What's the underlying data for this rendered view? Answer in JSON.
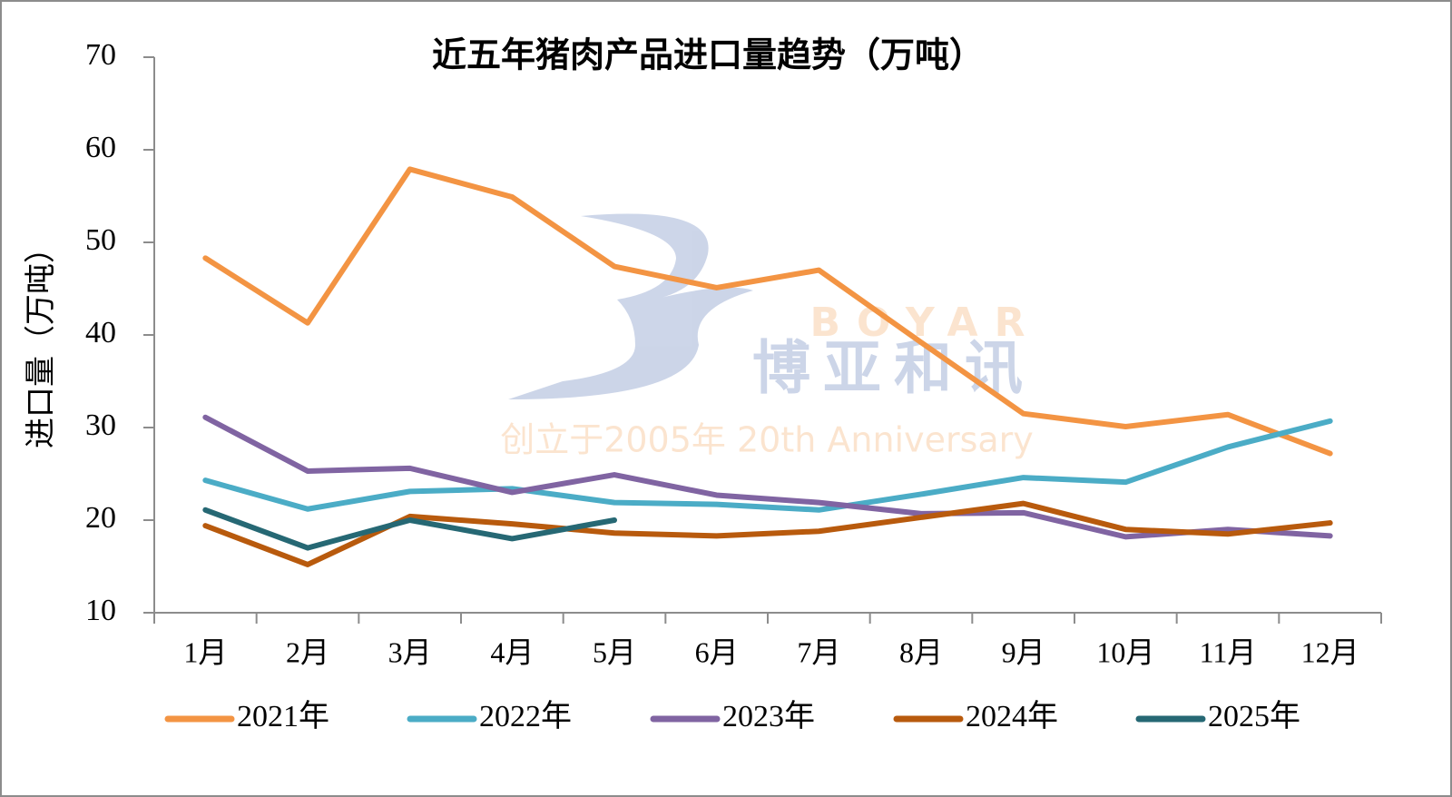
{
  "chart_data": {
    "type": "line",
    "title": "近五年猪肉产品进口量趋势（万吨）",
    "y_label": "进口量（万吨）",
    "watermark": {
      "brand": "BOYAR",
      "name": "博亚和讯",
      "slogan": "创立于2005年 20th Anniversary"
    },
    "categories": [
      "1月",
      "2月",
      "3月",
      "4月",
      "5月",
      "6月",
      "7月",
      "8月",
      "9月",
      "10月",
      "11月",
      "12月"
    ],
    "series": [
      {
        "name": "2021年",
        "color": "#f39443",
        "values": [
          48.3,
          41.3,
          57.9,
          54.9,
          47.4,
          45.1,
          47,
          39.2,
          31.5,
          30.1,
          31.4,
          27.2
        ]
      },
      {
        "name": "2022年",
        "color": "#4bacc6",
        "values": [
          24.3,
          21.2,
          23.1,
          23.4,
          21.9,
          21.7,
          21.1,
          22.8,
          24.6,
          24.1,
          27.9,
          30.7
        ]
      },
      {
        "name": "2023年",
        "color": "#8064a2",
        "values": [
          31.1,
          25.3,
          25.6,
          23,
          24.9,
          22.7,
          21.9,
          20.7,
          20.8,
          18.2,
          19,
          18.3
        ]
      },
      {
        "name": "2024年",
        "color": "#b85a0d",
        "values": [
          19.4,
          15.2,
          20.4,
          19.6,
          18.6,
          18.3,
          18.8,
          20.3,
          21.8,
          19,
          18.5,
          19.7
        ]
      },
      {
        "name": "2025年",
        "color": "#266874",
        "values": [
          21.1,
          17,
          20,
          18,
          20,
          null,
          null,
          null,
          null,
          null,
          null,
          null
        ]
      }
    ],
    "ylim": [
      10,
      70
    ],
    "yticks": [
      10,
      20,
      30,
      40,
      50,
      60,
      70
    ],
    "grid": false,
    "legend": "bottom"
  }
}
